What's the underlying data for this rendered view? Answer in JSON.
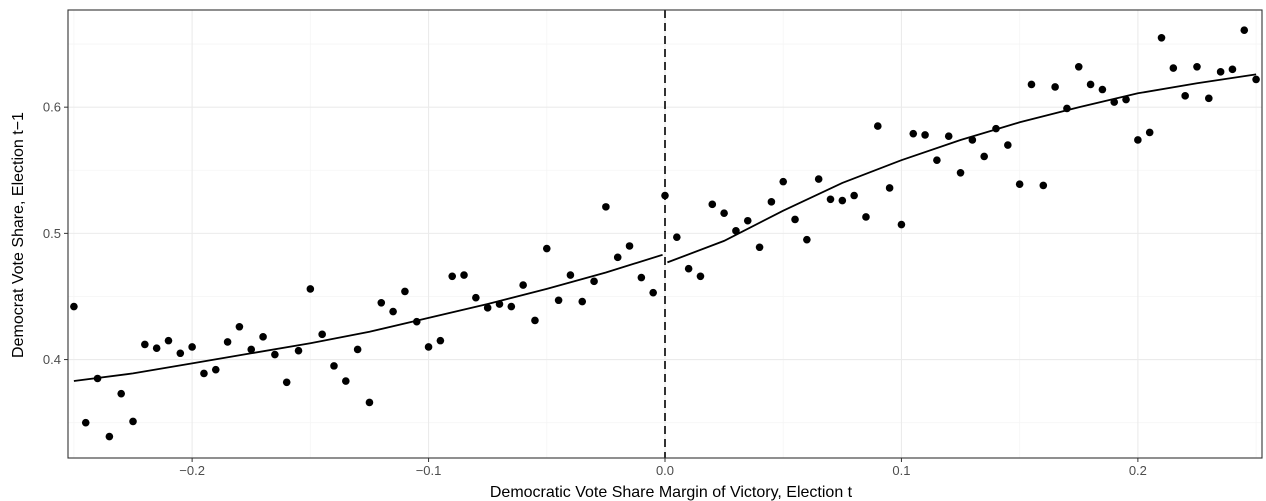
{
  "chart_data": {
    "type": "scatter",
    "xlabel": "Democratic Vote Share Margin of Victory, Election t",
    "ylabel": "Democrat Vote Share, Election t−1",
    "xlim": [
      -0.2525,
      0.2525
    ],
    "ylim": [
      0.322,
      0.677
    ],
    "x_ticks": [
      -0.2,
      -0.1,
      0.0,
      0.1,
      0.2
    ],
    "x_tick_labels": [
      "−0.2",
      "−0.1",
      "0.0",
      "0.1",
      "0.2"
    ],
    "y_ticks": [
      0.4,
      0.5,
      0.6
    ],
    "y_tick_labels": [
      "0.4",
      "0.5",
      "0.6"
    ],
    "grid": true,
    "cutoff": 0.0,
    "colors": {
      "points": "#000000",
      "fit": "#000000",
      "grid_major": "#ebebeb",
      "grid_minor": "#f5f5f5",
      "panel_border": "#333333",
      "cutoff_line": "#000000"
    },
    "points": [
      [
        -0.25,
        0.442
      ],
      [
        -0.245,
        0.35
      ],
      [
        -0.24,
        0.385
      ],
      [
        -0.235,
        0.339
      ],
      [
        -0.23,
        0.373
      ],
      [
        -0.225,
        0.351
      ],
      [
        -0.22,
        0.412
      ],
      [
        -0.215,
        0.409
      ],
      [
        -0.21,
        0.415
      ],
      [
        -0.205,
        0.405
      ],
      [
        -0.2,
        0.41
      ],
      [
        -0.195,
        0.389
      ],
      [
        -0.19,
        0.392
      ],
      [
        -0.185,
        0.414
      ],
      [
        -0.18,
        0.426
      ],
      [
        -0.175,
        0.408
      ],
      [
        -0.17,
        0.418
      ],
      [
        -0.165,
        0.404
      ],
      [
        -0.16,
        0.382
      ],
      [
        -0.155,
        0.407
      ],
      [
        -0.15,
        0.456
      ],
      [
        -0.145,
        0.42
      ],
      [
        -0.14,
        0.395
      ],
      [
        -0.135,
        0.383
      ],
      [
        -0.13,
        0.408
      ],
      [
        -0.125,
        0.366
      ],
      [
        -0.12,
        0.445
      ],
      [
        -0.115,
        0.438
      ],
      [
        -0.11,
        0.454
      ],
      [
        -0.105,
        0.43
      ],
      [
        -0.1,
        0.41
      ],
      [
        -0.095,
        0.415
      ],
      [
        -0.09,
        0.466
      ],
      [
        -0.085,
        0.467
      ],
      [
        -0.08,
        0.449
      ],
      [
        -0.075,
        0.441
      ],
      [
        -0.07,
        0.444
      ],
      [
        -0.065,
        0.442
      ],
      [
        -0.06,
        0.459
      ],
      [
        -0.055,
        0.431
      ],
      [
        -0.05,
        0.488
      ],
      [
        -0.045,
        0.447
      ],
      [
        -0.04,
        0.467
      ],
      [
        -0.035,
        0.446
      ],
      [
        -0.03,
        0.462
      ],
      [
        -0.025,
        0.521
      ],
      [
        -0.02,
        0.481
      ],
      [
        -0.015,
        0.49
      ],
      [
        -0.01,
        0.465
      ],
      [
        -0.005,
        0.453
      ],
      [
        0.0,
        0.53
      ],
      [
        0.005,
        0.497
      ],
      [
        0.01,
        0.472
      ],
      [
        0.015,
        0.466
      ],
      [
        0.02,
        0.523
      ],
      [
        0.025,
        0.516
      ],
      [
        0.03,
        0.502
      ],
      [
        0.035,
        0.51
      ],
      [
        0.04,
        0.489
      ],
      [
        0.045,
        0.525
      ],
      [
        0.05,
        0.541
      ],
      [
        0.055,
        0.511
      ],
      [
        0.06,
        0.495
      ],
      [
        0.065,
        0.543
      ],
      [
        0.07,
        0.527
      ],
      [
        0.075,
        0.526
      ],
      [
        0.08,
        0.53
      ],
      [
        0.085,
        0.513
      ],
      [
        0.09,
        0.585
      ],
      [
        0.095,
        0.536
      ],
      [
        0.1,
        0.507
      ],
      [
        0.105,
        0.579
      ],
      [
        0.11,
        0.578
      ],
      [
        0.115,
        0.558
      ],
      [
        0.12,
        0.577
      ],
      [
        0.125,
        0.548
      ],
      [
        0.13,
        0.574
      ],
      [
        0.135,
        0.561
      ],
      [
        0.14,
        0.583
      ],
      [
        0.145,
        0.57
      ],
      [
        0.15,
        0.539
      ],
      [
        0.155,
        0.618
      ],
      [
        0.16,
        0.538
      ],
      [
        0.165,
        0.616
      ],
      [
        0.17,
        0.599
      ],
      [
        0.175,
        0.632
      ],
      [
        0.18,
        0.618
      ],
      [
        0.185,
        0.614
      ],
      [
        0.19,
        0.604
      ],
      [
        0.195,
        0.606
      ],
      [
        0.2,
        0.574
      ],
      [
        0.205,
        0.58
      ],
      [
        0.21,
        0.655
      ],
      [
        0.215,
        0.631
      ],
      [
        0.22,
        0.609
      ],
      [
        0.225,
        0.632
      ],
      [
        0.23,
        0.607
      ],
      [
        0.235,
        0.628
      ],
      [
        0.24,
        0.63
      ],
      [
        0.245,
        0.661
      ],
      [
        0.25,
        0.622
      ]
    ],
    "fit_left": [
      [
        -0.25,
        0.383
      ],
      [
        -0.225,
        0.389
      ],
      [
        -0.2,
        0.397
      ],
      [
        -0.175,
        0.405
      ],
      [
        -0.15,
        0.413
      ],
      [
        -0.125,
        0.422
      ],
      [
        -0.1,
        0.433
      ],
      [
        -0.075,
        0.444
      ],
      [
        -0.05,
        0.456
      ],
      [
        -0.025,
        0.469
      ],
      [
        -0.001,
        0.483
      ]
    ],
    "fit_right": [
      [
        0.001,
        0.477
      ],
      [
        0.025,
        0.494
      ],
      [
        0.05,
        0.518
      ],
      [
        0.075,
        0.54
      ],
      [
        0.1,
        0.558
      ],
      [
        0.125,
        0.574
      ],
      [
        0.15,
        0.588
      ],
      [
        0.175,
        0.6
      ],
      [
        0.2,
        0.611
      ],
      [
        0.225,
        0.619
      ],
      [
        0.25,
        0.626
      ]
    ]
  }
}
